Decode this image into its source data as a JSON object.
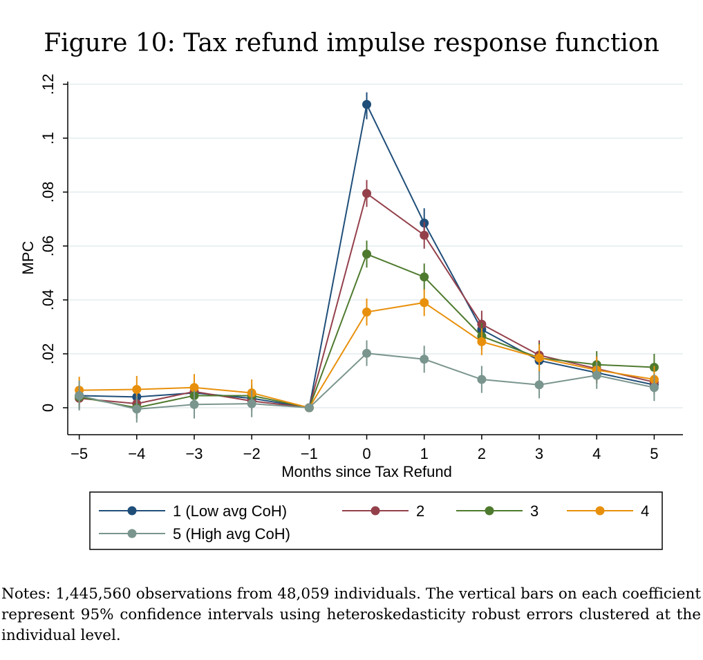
{
  "title": "Figure 10: Tax refund impulse response function",
  "notes": "Notes: 1,445,560 observations from 48,059 individuals. The vertical bars on each coefficient represent 95% confidence intervals using heteroskedasticity robust errors clustered at the individual level.",
  "chart_data": {
    "type": "line",
    "xlabel": "Months since Tax Refund",
    "ylabel": "MPC",
    "xlim": [
      -5.2,
      5.5
    ],
    "ylim": [
      -0.01,
      0.121
    ],
    "x": [
      -5,
      -4,
      -3,
      -2,
      -1,
      0,
      1,
      2,
      3,
      4,
      5
    ],
    "x_tick_labels": [
      "−5",
      "−4",
      "−3",
      "−2",
      "−1",
      "0",
      "1",
      "2",
      "3",
      "4",
      "5"
    ],
    "y_ticks": [
      0,
      0.02,
      0.04,
      0.06,
      0.08,
      0.1,
      0.12
    ],
    "y_tick_labels": [
      "0",
      ".02",
      ".04",
      ".06",
      ".08",
      ".1",
      ".12"
    ],
    "grid": true,
    "legend_position": "bottom",
    "series": [
      {
        "name": "1 (Low avg CoH)",
        "color": "#1f4e79",
        "values": [
          0.0045,
          0.004,
          0.0055,
          0.0035,
          0.0,
          0.1125,
          0.0685,
          0.029,
          0.0175,
          0.013,
          0.0085
        ],
        "ci_low": [
          0.001,
          0.001,
          0.002,
          0.0005,
          0.0,
          0.107,
          0.063,
          0.025,
          0.013,
          0.009,
          0.005
        ],
        "ci_high": [
          0.008,
          0.007,
          0.009,
          0.0065,
          0.0,
          0.117,
          0.074,
          0.033,
          0.022,
          0.017,
          0.012
        ]
      },
      {
        "name": "2",
        "color": "#94404b",
        "values": [
          0.0035,
          0.0015,
          0.006,
          0.0025,
          0.0,
          0.0795,
          0.064,
          0.031,
          0.0195,
          0.0145,
          0.0095
        ],
        "ci_low": [
          -0.0005,
          -0.002,
          0.002,
          -0.001,
          0.0,
          0.0745,
          0.059,
          0.026,
          0.014,
          0.01,
          0.005
        ],
        "ci_high": [
          0.0075,
          0.005,
          0.01,
          0.006,
          0.0,
          0.0845,
          0.069,
          0.036,
          0.025,
          0.019,
          0.014
        ]
      },
      {
        "name": "3",
        "color": "#4e7a2e",
        "values": [
          0.004,
          0.0,
          0.0045,
          0.0045,
          0.0,
          0.057,
          0.0485,
          0.0265,
          0.0185,
          0.016,
          0.015
        ],
        "ci_low": [
          0.0,
          -0.004,
          0.0005,
          0.0005,
          0.0,
          0.052,
          0.0435,
          0.0215,
          0.013,
          0.011,
          0.01
        ],
        "ci_high": [
          0.008,
          0.004,
          0.0085,
          0.0085,
          0.0,
          0.062,
          0.0535,
          0.0315,
          0.024,
          0.021,
          0.02
        ]
      },
      {
        "name": "4",
        "color": "#e8900c",
        "values": [
          0.0065,
          0.0068,
          0.0075,
          0.0055,
          0.0,
          0.0355,
          0.039,
          0.0245,
          0.0185,
          0.014,
          0.0105
        ],
        "ci_low": [
          0.0015,
          0.0018,
          0.0025,
          0.0005,
          0.0,
          0.0305,
          0.034,
          0.0195,
          0.0135,
          0.009,
          0.0055
        ],
        "ci_high": [
          0.0115,
          0.0118,
          0.0125,
          0.0105,
          0.0,
          0.0405,
          0.044,
          0.0295,
          0.0235,
          0.019,
          0.0155
        ]
      },
      {
        "name": "5 (High avg CoH)",
        "color": "#7a958e",
        "values": [
          0.0045,
          -0.0005,
          0.0012,
          0.0015,
          0.0,
          0.0202,
          0.018,
          0.0105,
          0.0085,
          0.012,
          0.0075
        ],
        "ci_low": [
          -0.001,
          -0.0055,
          -0.004,
          -0.0035,
          0.0,
          0.0155,
          0.013,
          0.0055,
          0.0035,
          0.007,
          0.0025
        ],
        "ci_high": [
          0.01,
          0.0045,
          0.0065,
          0.0065,
          0.0,
          0.025,
          0.023,
          0.0155,
          0.0135,
          0.017,
          0.0125
        ]
      }
    ]
  }
}
